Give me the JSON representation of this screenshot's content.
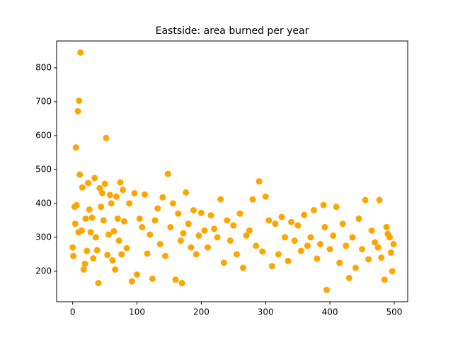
{
  "chart_data": {
    "type": "scatter",
    "title": "Eastside: area burned per year",
    "color": "#ffa500",
    "x": [
      0,
      1,
      3,
      4,
      5,
      6,
      8,
      9,
      10,
      11,
      12,
      14,
      15,
      17,
      19,
      20,
      22,
      24,
      26,
      28,
      30,
      32,
      34,
      36,
      38,
      40,
      42,
      44,
      46,
      48,
      50,
      52,
      54,
      56,
      58,
      60,
      62,
      64,
      66,
      68,
      70,
      72,
      74,
      76,
      78,
      80,
      84,
      88,
      92,
      96,
      100,
      104,
      108,
      112,
      116,
      120,
      124,
      128,
      132,
      136,
      140,
      144,
      148,
      152,
      156,
      160,
      164,
      168,
      170,
      172,
      176,
      180,
      184,
      188,
      192,
      196,
      200,
      205,
      210,
      215,
      220,
      225,
      230,
      235,
      240,
      245,
      250,
      255,
      260,
      265,
      270,
      275,
      280,
      285,
      290,
      295,
      300,
      305,
      310,
      315,
      320,
      325,
      330,
      335,
      340,
      345,
      350,
      355,
      360,
      365,
      370,
      375,
      380,
      385,
      390,
      392,
      395,
      400,
      405,
      410,
      415,
      420,
      425,
      430,
      435,
      440,
      445,
      450,
      455,
      460,
      465,
      470,
      475,
      477,
      480,
      485,
      488,
      490,
      493,
      495,
      497,
      499
    ],
    "y": [
      270,
      245,
      390,
      340,
      565,
      395,
      672,
      315,
      703,
      485,
      845,
      320,
      447,
      205,
      222,
      355,
      260,
      460,
      382,
      315,
      358,
      238,
      475,
      300,
      262,
      165,
      445,
      390,
      430,
      350,
      458,
      593,
      248,
      308,
      425,
      400,
      232,
      318,
      205,
      420,
      355,
      290,
      462,
      250,
      440,
      347,
      268,
      400,
      170,
      430,
      190,
      355,
      330,
      426,
      252,
      308,
      178,
      350,
      385,
      280,
      418,
      245,
      487,
      330,
      400,
      175,
      370,
      290,
      165,
      312,
      432,
      340,
      270,
      380,
      250,
      305,
      372,
      320,
      270,
      365,
      325,
      300,
      412,
      225,
      350,
      290,
      335,
      250,
      370,
      210,
      305,
      320,
      412,
      275,
      465,
      258,
      420,
      350,
      215,
      340,
      250,
      360,
      300,
      230,
      345,
      290,
      335,
      260,
      366,
      275,
      300,
      380,
      237,
      280,
      395,
      330,
      145,
      265,
      305,
      390,
      225,
      340,
      275,
      180,
      300,
      210,
      355,
      265,
      410,
      235,
      320,
      285,
      270,
      410,
      240,
      175,
      330,
      310,
      300,
      255,
      200,
      280
    ],
    "xlim": [
      -25,
      521
    ],
    "xticks": [
      0,
      100,
      200,
      300,
      400,
      500
    ],
    "ylim": [
      110,
      879
    ],
    "yticks": [
      200,
      300,
      400,
      500,
      600,
      700,
      800
    ]
  }
}
